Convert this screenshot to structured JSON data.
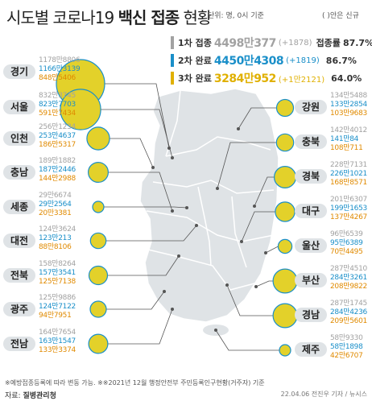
{
  "title": {
    "prefix": "시도별 코로나19 ",
    "bold": "백신 접종",
    "suffix": " 현황"
  },
  "units": "단위: 명, 0시 기준",
  "note": "( )안은 신규",
  "summary": [
    {
      "label": "1차 접종",
      "value": "4498만377",
      "delta": "(+1878)",
      "rate_label": "접종률",
      "rate": "87.7%",
      "color": "#a2a2a2"
    },
    {
      "label": "2차 완료",
      "value": "4450만4308",
      "delta": "(+1819)",
      "rate_label": "",
      "rate": "86.7%",
      "color": "#1a8fc9"
    },
    {
      "label": "3차 완료",
      "value": "3284만952",
      "delta": "(+1만2121)",
      "rate_label": "",
      "rate": "64.0%",
      "color": "#e0b000"
    }
  ],
  "chart_data": {
    "type": "bubble-map",
    "title": "시도별 코로나19 백신 접종 현황",
    "series": [
      {
        "name": "1차 접종"
      },
      {
        "name": "2차 완료"
      },
      {
        "name": "3차 완료"
      }
    ],
    "regions": [
      {
        "name": "경기",
        "first": "1178만8806",
        "second": "1166만3139",
        "third": "848만5406",
        "third_value": 8485406
      },
      {
        "name": "서울",
        "first": "832만3745",
        "second": "823만7703",
        "third": "591만7434",
        "third_value": 5917434
      },
      {
        "name": "인천",
        "first": "256만1234",
        "second": "253만4637",
        "third": "186만5317",
        "third_value": 1865317
      },
      {
        "name": "충남",
        "first": "189만1882",
        "second": "187만2446",
        "third": "144만2988",
        "third_value": 1442988
      },
      {
        "name": "세종",
        "first": "29만6674",
        "second": "29만2564",
        "third": "20만3381",
        "third_value": 203381
      },
      {
        "name": "대전",
        "first": "124만3624",
        "second": "123만213",
        "third": "88만8106",
        "third_value": 888106
      },
      {
        "name": "전북",
        "first": "158만8264",
        "second": "157만3541",
        "third": "125만7138",
        "third_value": 1257138
      },
      {
        "name": "광주",
        "first": "125만9886",
        "second": "124만7122",
        "third": "94만7951",
        "third_value": 947951
      },
      {
        "name": "전남",
        "first": "164만7654",
        "second": "163만1547",
        "third": "133만3374",
        "third_value": 1333374
      },
      {
        "name": "강원",
        "first": "134만5488",
        "second": "133만2854",
        "third": "103만9683",
        "third_value": 1039683
      },
      {
        "name": "충북",
        "first": "142만4012",
        "second": "141만84",
        "third": "108만711",
        "third_value": 1080711
      },
      {
        "name": "경북",
        "first": "228만7131",
        "second": "226만1021",
        "third": "168만8571",
        "third_value": 1688571
      },
      {
        "name": "대구",
        "first": "201만6307",
        "second": "199만1653",
        "third": "137만4267",
        "third_value": 1374267
      },
      {
        "name": "울산",
        "first": "96만6539",
        "second": "95만6389",
        "third": "70만4495",
        "third_value": 704495
      },
      {
        "name": "부산",
        "first": "287만4510",
        "second": "284만3261",
        "third": "208만9822",
        "third_value": 2089822
      },
      {
        "name": "경남",
        "first": "287만1745",
        "second": "284만4236",
        "third": "209만5601",
        "third_value": 2095601
      },
      {
        "name": "제주",
        "first": "58만9330",
        "second": "58만1898",
        "third": "42만6707",
        "third_value": 426707
      }
    ]
  },
  "footer_note": "※예방접종등록에 따라 변동 가능. ※※2021년 12월 행정안전부 주민등록인구현황(거주자) 기준",
  "source_label": "자료: ",
  "source_name": "질병관리청",
  "credit": "22.04.06 전진우 기자 / 뉴시스",
  "colors": {
    "bubble": "#e3d12a",
    "bubble_stroke": "#1a8fc9",
    "map": "#dfe3e6",
    "pill": "#dfe3e6",
    "first": "#a2a2a2",
    "second": "#1a8fc9",
    "third": "#e08a00"
  }
}
